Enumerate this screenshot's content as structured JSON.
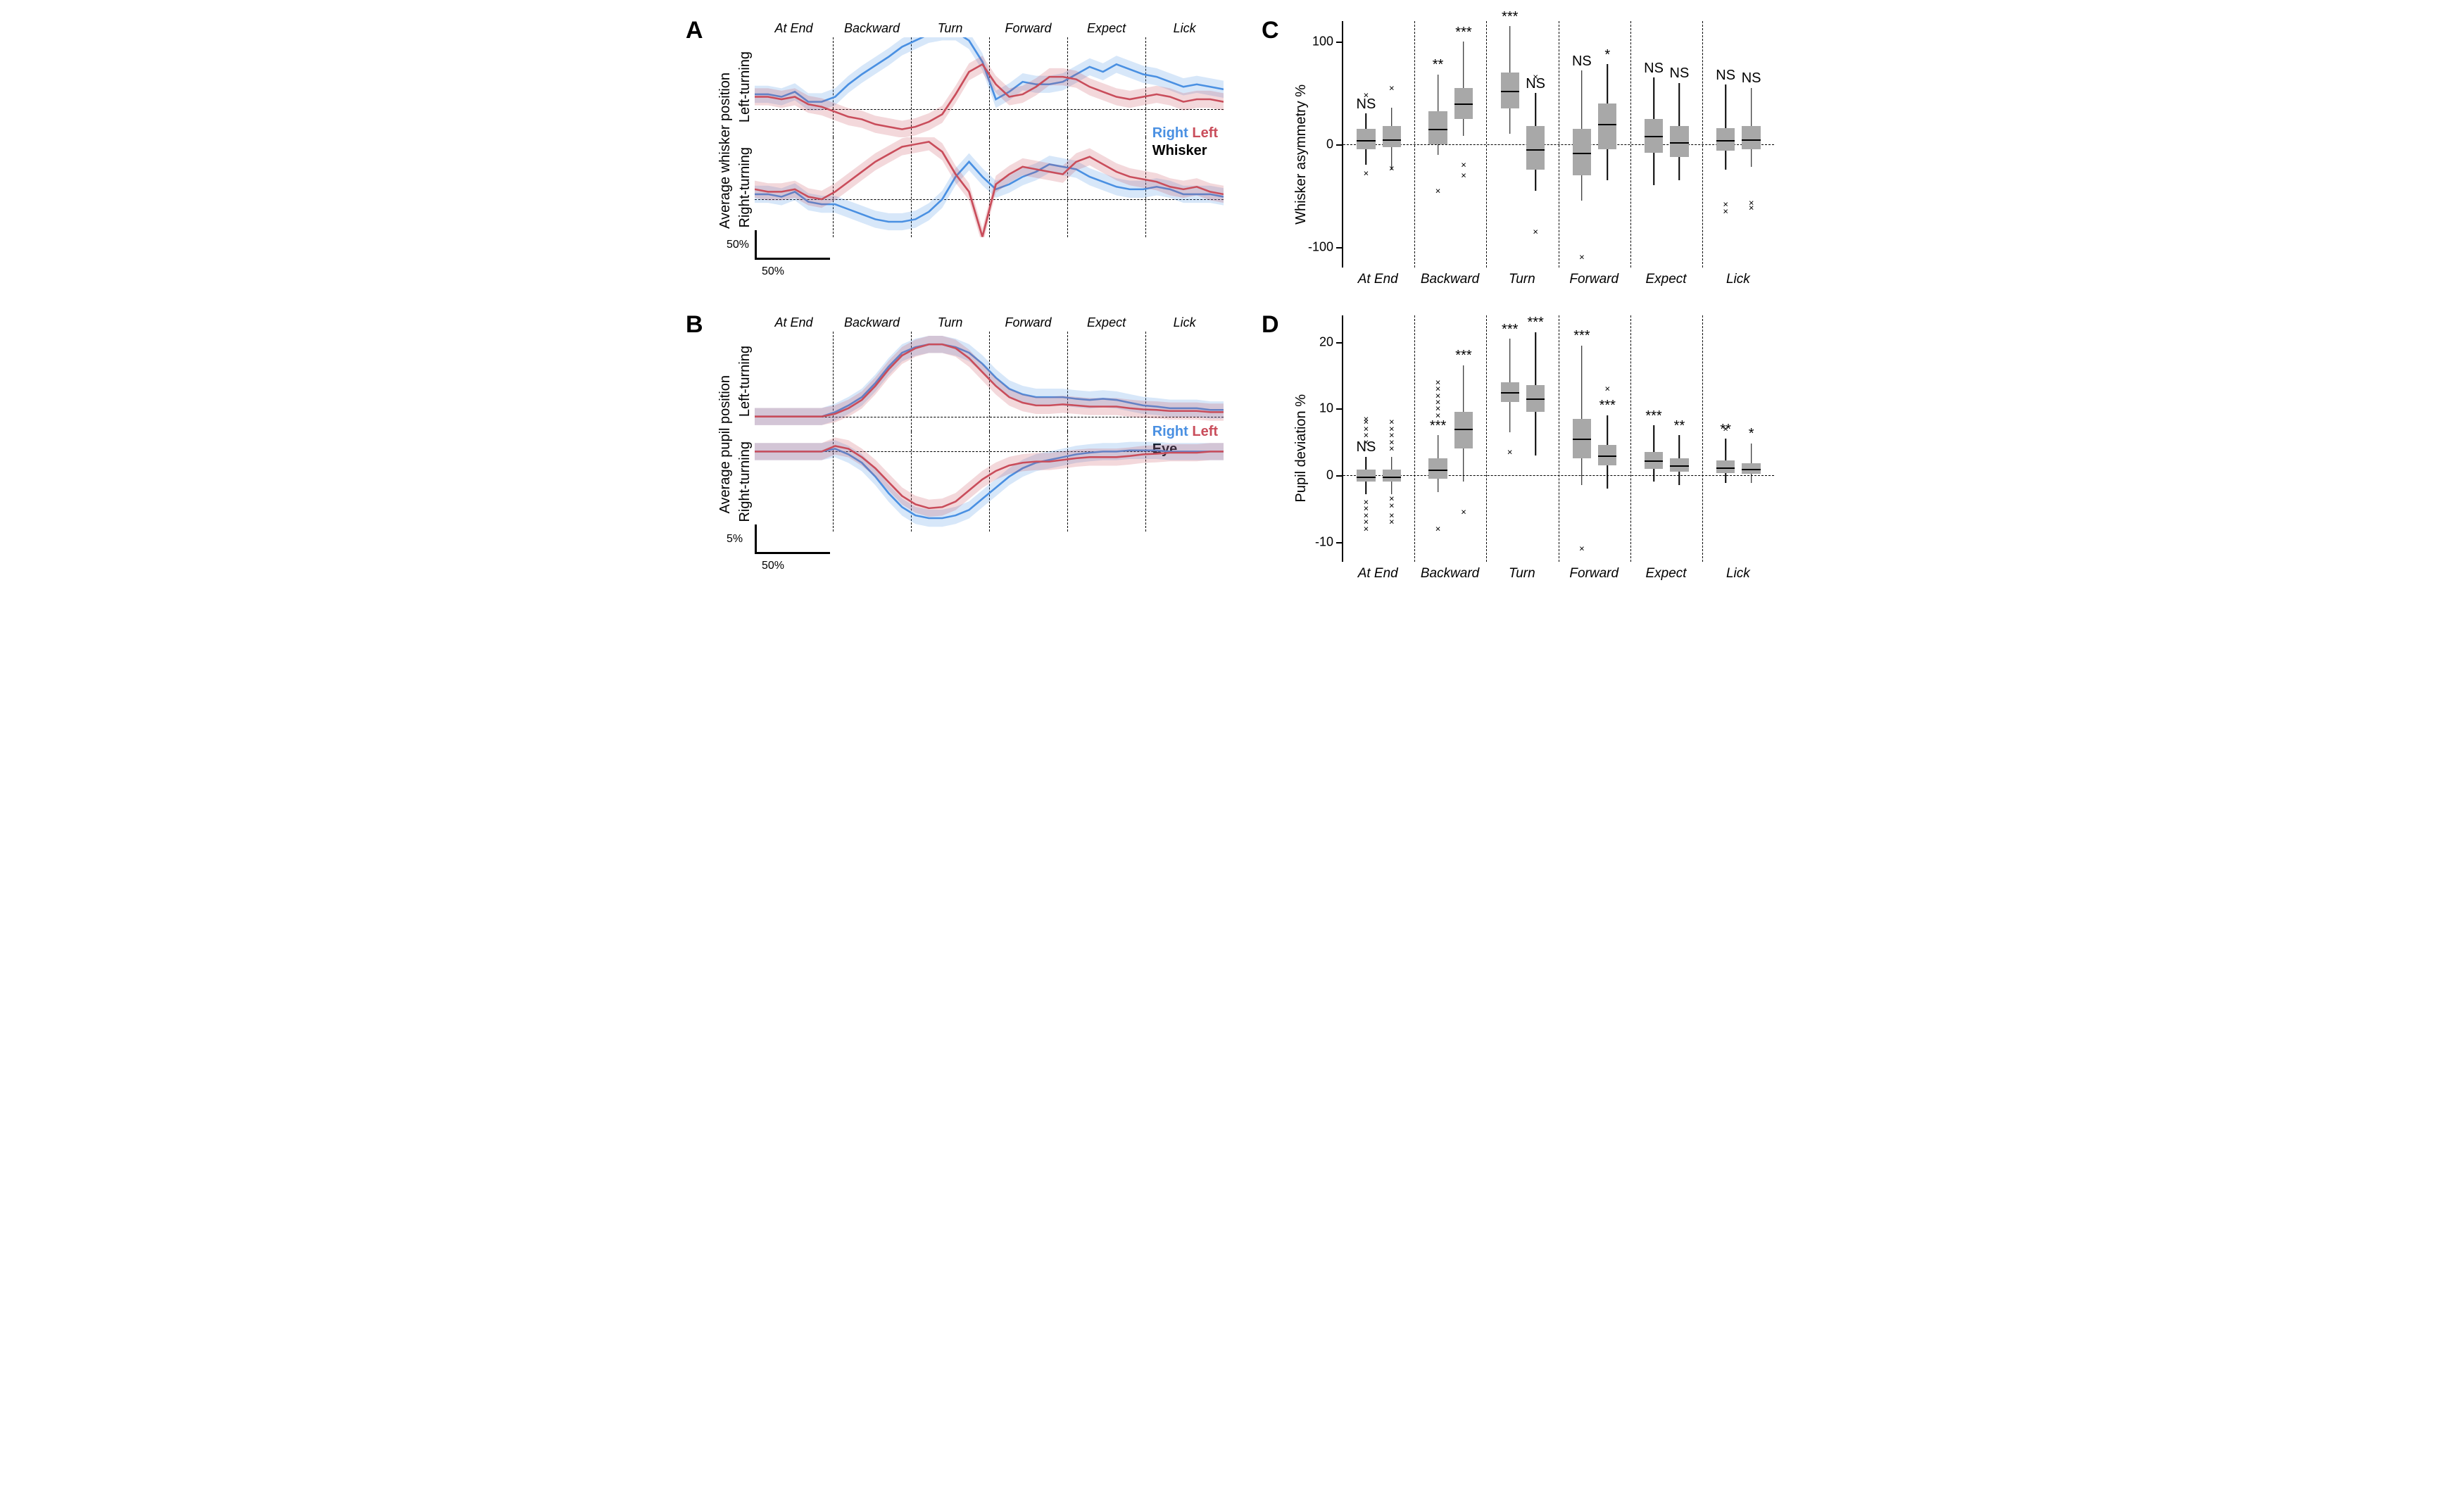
{
  "phases": [
    "At End",
    "Backward",
    "Turn",
    "Forward",
    "Expect",
    "Lick"
  ],
  "colors": {
    "right": "#4a90e2",
    "left": "#c94d5b",
    "box_fill": "#a8a8a8",
    "baseline": "#000000"
  },
  "panelA": {
    "letter": "A",
    "ylabel": "Average whisker position",
    "row_labels": [
      "Left-turning",
      "Right-turning"
    ],
    "legend": {
      "right": "Right",
      "left": "Left",
      "sub": "Whisker",
      "pos": "row1-right"
    },
    "scalebar": {
      "v": "50%",
      "h": "50%",
      "h_frac": 0.16
    },
    "yrange": 80,
    "traces": {
      "left_turning": {
        "right": [
          12,
          12,
          10,
          14,
          6,
          6,
          10,
          20,
          28,
          35,
          42,
          50,
          55,
          60,
          62,
          62,
          55,
          38,
          8,
          14,
          22,
          20,
          20,
          22,
          28,
          34,
          30,
          36,
          32,
          28,
          26,
          22,
          18,
          20,
          18,
          16
        ],
        "left": [
          10,
          10,
          8,
          10,
          4,
          2,
          -2,
          -6,
          -8,
          -12,
          -14,
          -16,
          -14,
          -10,
          -4,
          12,
          30,
          36,
          20,
          10,
          12,
          18,
          26,
          26,
          24,
          18,
          14,
          10,
          8,
          10,
          12,
          10,
          6,
          8,
          8,
          6
        ]
      },
      "right_turning": {
        "right": [
          4,
          4,
          2,
          6,
          -2,
          -4,
          -4,
          -8,
          -12,
          -16,
          -18,
          -18,
          -16,
          -10,
          0,
          18,
          30,
          18,
          8,
          12,
          18,
          22,
          28,
          26,
          24,
          18,
          14,
          10,
          8,
          8,
          10,
          8,
          4,
          4,
          4,
          2
        ],
        "left": [
          8,
          6,
          6,
          8,
          2,
          0,
          6,
          14,
          22,
          30,
          36,
          42,
          44,
          46,
          38,
          20,
          6,
          -30,
          12,
          20,
          26,
          24,
          22,
          20,
          30,
          34,
          28,
          22,
          18,
          16,
          14,
          10,
          8,
          10,
          6,
          4
        ]
      }
    }
  },
  "panelB": {
    "letter": "B",
    "ylabel": "Average pupil position",
    "row_labels": [
      "Left-turning",
      "Right-turning"
    ],
    "legend": {
      "right": "Right",
      "left": "Left",
      "sub": "Eye",
      "pos": "row2-right"
    },
    "scalebar": {
      "v": "5%",
      "h": "50%",
      "h_frac": 0.16
    },
    "yrange": 18,
    "traces": {
      "left_turning": {
        "right": [
          0,
          0,
          0,
          0,
          0,
          0,
          0.8,
          2.0,
          3.5,
          6.0,
          9.0,
          11.5,
          12.5,
          13.0,
          13.0,
          12.5,
          11.5,
          9.5,
          7.0,
          5.0,
          4.0,
          3.5,
          3.5,
          3.5,
          3.2,
          3.0,
          3.2,
          3.0,
          2.5,
          2.0,
          1.8,
          1.5,
          1.5,
          1.5,
          1.2,
          1.2
        ],
        "left": [
          0,
          0,
          0,
          0,
          0,
          0,
          0.5,
          1.5,
          3.0,
          5.5,
          8.5,
          11.0,
          12.3,
          13.0,
          13.0,
          12.3,
          10.5,
          8.0,
          5.5,
          3.5,
          2.5,
          2.0,
          2.0,
          2.2,
          2.0,
          1.8,
          1.8,
          1.8,
          1.5,
          1.3,
          1.2,
          1.0,
          1.0,
          1.0,
          0.8,
          0.8
        ]
      },
      "right_turning": {
        "right": [
          0,
          0,
          0,
          0,
          0,
          0,
          0.5,
          -0.5,
          -2.0,
          -4.5,
          -7.5,
          -10.0,
          -11.5,
          -12.0,
          -12.0,
          -11.5,
          -10.5,
          -8.5,
          -6.5,
          -4.5,
          -3.0,
          -2.0,
          -1.5,
          -1.0,
          -0.5,
          -0.2,
          0,
          0,
          0.2,
          0.2,
          0.2,
          0,
          0,
          0,
          0,
          0
        ],
        "left": [
          0,
          0,
          0,
          0,
          0,
          0,
          1.0,
          0.5,
          -1.0,
          -3.0,
          -5.5,
          -8.0,
          -9.5,
          -10.2,
          -10.0,
          -9.0,
          -7.0,
          -5.0,
          -3.5,
          -2.5,
          -2.0,
          -1.8,
          -1.8,
          -1.5,
          -1.2,
          -1.0,
          -1.0,
          -1.0,
          -0.8,
          -0.5,
          -0.4,
          -0.2,
          -0.2,
          -0.2,
          0,
          0
        ]
      }
    }
  },
  "panelC": {
    "letter": "C",
    "ylabel": "Whisker asymmetry %",
    "ymin": -120,
    "ymax": 120,
    "yticks": [
      -100,
      0,
      100
    ],
    "box_width_pct": 26,
    "groups": [
      {
        "phase": "At End",
        "pairs": [
          {
            "q1": -5,
            "med": 4,
            "q3": 15,
            "lo": -20,
            "hi": 30,
            "out": [
              48,
              -28
            ],
            "sig": "NS"
          },
          {
            "q1": -3,
            "med": 5,
            "q3": 18,
            "lo": -25,
            "hi": 36,
            "out": [
              55,
              -23
            ],
            "sig": ""
          }
        ]
      },
      {
        "phase": "Backward",
        "pairs": [
          {
            "q1": 0,
            "med": 15,
            "q3": 32,
            "lo": -10,
            "hi": 68,
            "out": [
              -45
            ],
            "sig": "**"
          },
          {
            "q1": 25,
            "med": 40,
            "q3": 55,
            "lo": 8,
            "hi": 100,
            "out": [
              -20,
              -30
            ],
            "sig": "***"
          }
        ]
      },
      {
        "phase": "Turn",
        "pairs": [
          {
            "q1": 35,
            "med": 52,
            "q3": 70,
            "lo": 10,
            "hi": 115,
            "out": [],
            "sig": "***"
          },
          {
            "q1": -25,
            "med": -5,
            "q3": 18,
            "lo": -45,
            "hi": 50,
            "out": [
              66,
              -85
            ],
            "sig": "NS"
          }
        ]
      },
      {
        "phase": "Forward",
        "pairs": [
          {
            "q1": -30,
            "med": -8,
            "q3": 15,
            "lo": -55,
            "hi": 72,
            "out": [
              -110
            ],
            "sig": "NS"
          },
          {
            "q1": -5,
            "med": 20,
            "q3": 40,
            "lo": -35,
            "hi": 78,
            "out": [],
            "sig": "*"
          }
        ]
      },
      {
        "phase": "Expect",
        "pairs": [
          {
            "q1": -8,
            "med": 8,
            "q3": 25,
            "lo": -40,
            "hi": 65,
            "out": [],
            "sig": "NS"
          },
          {
            "q1": -12,
            "med": 2,
            "q3": 18,
            "lo": -35,
            "hi": 60,
            "out": [],
            "sig": "NS"
          }
        ]
      },
      {
        "phase": "Lick",
        "pairs": [
          {
            "q1": -6,
            "med": 4,
            "q3": 16,
            "lo": -25,
            "hi": 58,
            "out": [
              -58,
              -65
            ],
            "sig": "NS"
          },
          {
            "q1": -5,
            "med": 5,
            "q3": 18,
            "lo": -22,
            "hi": 55,
            "out": [
              -57,
              -62
            ],
            "sig": "NS"
          }
        ]
      }
    ]
  },
  "panelD": {
    "letter": "D",
    "ylabel": "Pupil deviation %",
    "ymin": -13,
    "ymax": 24,
    "yticks": [
      -10,
      0,
      10,
      20
    ],
    "box_width_pct": 26,
    "groups": [
      {
        "phase": "At End",
        "pairs": [
          {
            "q1": -1.0,
            "med": -0.2,
            "q3": 0.8,
            "lo": -2.8,
            "hi": 2.8,
            "out": [
              5,
              6,
              7,
              8,
              8.5,
              -4,
              -5,
              -6,
              -7,
              -8
            ],
            "sig": "NS"
          },
          {
            "q1": -1.0,
            "med": -0.2,
            "q3": 0.8,
            "lo": -2.8,
            "hi": 2.8,
            "out": [
              4,
              5,
              6,
              7,
              8,
              -3.5,
              -4.5,
              -6,
              -7
            ],
            "sig": ""
          }
        ]
      },
      {
        "phase": "Backward",
        "pairs": [
          {
            "q1": -0.5,
            "med": 0.8,
            "q3": 2.5,
            "lo": -2.5,
            "hi": 6.0,
            "out": [
              9,
              10,
              11,
              12,
              13,
              14,
              -8
            ],
            "sig": "***"
          },
          {
            "q1": 4.0,
            "med": 7.0,
            "q3": 9.5,
            "lo": -1.0,
            "hi": 16.5,
            "out": [
              -5.5
            ],
            "sig": "***"
          }
        ]
      },
      {
        "phase": "Turn",
        "pairs": [
          {
            "q1": 11.0,
            "med": 12.5,
            "q3": 14.0,
            "lo": 6.5,
            "hi": 20.5,
            "out": [
              3.5
            ],
            "sig": "***"
          },
          {
            "q1": 9.5,
            "med": 11.5,
            "q3": 13.5,
            "lo": 3.0,
            "hi": 21.5,
            "out": [],
            "sig": "***"
          }
        ]
      },
      {
        "phase": "Forward",
        "pairs": [
          {
            "q1": 2.5,
            "med": 5.5,
            "q3": 8.5,
            "lo": -1.5,
            "hi": 19.5,
            "out": [
              -11
            ],
            "sig": "***"
          },
          {
            "q1": 1.5,
            "med": 3.0,
            "q3": 4.5,
            "lo": -2.0,
            "hi": 9.0,
            "out": [
              13
            ],
            "sig": "***"
          }
        ]
      },
      {
        "phase": "Expect",
        "pairs": [
          {
            "q1": 1.0,
            "med": 2.2,
            "q3": 3.5,
            "lo": -1.0,
            "hi": 7.5,
            "out": [],
            "sig": "***"
          },
          {
            "q1": 0.5,
            "med": 1.5,
            "q3": 2.5,
            "lo": -1.5,
            "hi": 6.0,
            "out": [],
            "sig": "**"
          }
        ]
      },
      {
        "phase": "Lick",
        "pairs": [
          {
            "q1": 0.3,
            "med": 1.2,
            "q3": 2.2,
            "lo": -1.2,
            "hi": 5.5,
            "out": [
              7.0
            ],
            "sig": "**"
          },
          {
            "q1": 0.2,
            "med": 1.0,
            "q3": 1.8,
            "lo": -1.2,
            "hi": 4.8,
            "out": [],
            "sig": "*"
          }
        ]
      }
    ]
  }
}
